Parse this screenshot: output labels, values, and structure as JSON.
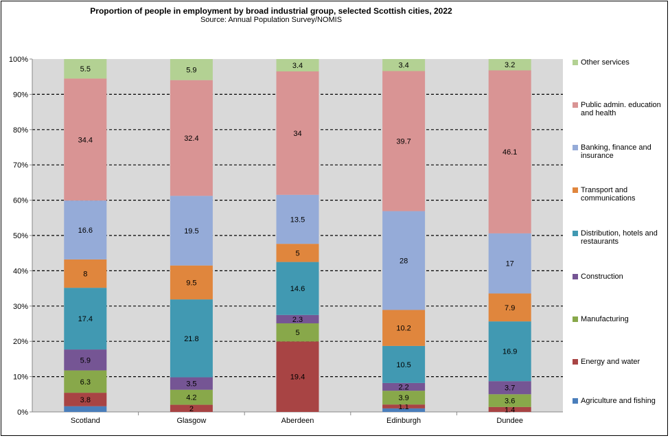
{
  "chart_data": {
    "type": "bar",
    "stacked": true,
    "normalized_100_percent": true,
    "title": "Proportion of people in employment by broad industrial group, selected Scottish cities, 2022",
    "subtitle": "Source: Annual Population Survey/NOMIS",
    "xlabel": "",
    "ylabel": "",
    "ylim": [
      0,
      100
    ],
    "yticks": [
      "0%",
      "10%",
      "20%",
      "30%",
      "40%",
      "50%",
      "60%",
      "70%",
      "80%",
      "90%",
      "100%"
    ],
    "grid": "horizontal dashed",
    "legend_position": "right",
    "categories": [
      "Scotland",
      "Glasgow",
      "Aberdeen",
      "Edinburgh",
      "Dundee"
    ],
    "series": [
      {
        "name": "Agriculture and fishing",
        "color": "#4a7ebb",
        "values": [
          1.6,
          0,
          0,
          1.0,
          0
        ],
        "labels": [
          null,
          null,
          null,
          null,
          null
        ]
      },
      {
        "name": "Energy and water",
        "color": "#a84444",
        "values": [
          3.8,
          2,
          19.4,
          1.1,
          1.4
        ]
      },
      {
        "name": "Manufacturing",
        "color": "#88a84a",
        "values": [
          6.3,
          4.2,
          5,
          3.9,
          3.6
        ]
      },
      {
        "name": "Construction",
        "color": "#755594",
        "values": [
          5.9,
          3.5,
          2.3,
          2.2,
          3.7
        ]
      },
      {
        "name": "Distribution, hotels and restaurants",
        "color": "#4199b2",
        "values": [
          17.4,
          21.8,
          14.6,
          10.5,
          16.9
        ]
      },
      {
        "name": "Transport and communications",
        "color": "#e0863d",
        "values": [
          8,
          9.5,
          5,
          10.2,
          7.9
        ]
      },
      {
        "name": "Banking, finance and insurance",
        "color": "#95abd8",
        "values": [
          16.6,
          19.5,
          13.5,
          28,
          17
        ]
      },
      {
        "name": "Public admin. education and health",
        "color": "#d99494",
        "values": [
          34.4,
          32.4,
          34,
          39.7,
          46.1
        ]
      },
      {
        "name": "Other services",
        "color": "#b3d193",
        "values": [
          5.5,
          5.9,
          3.4,
          3.4,
          3.2
        ]
      }
    ]
  }
}
